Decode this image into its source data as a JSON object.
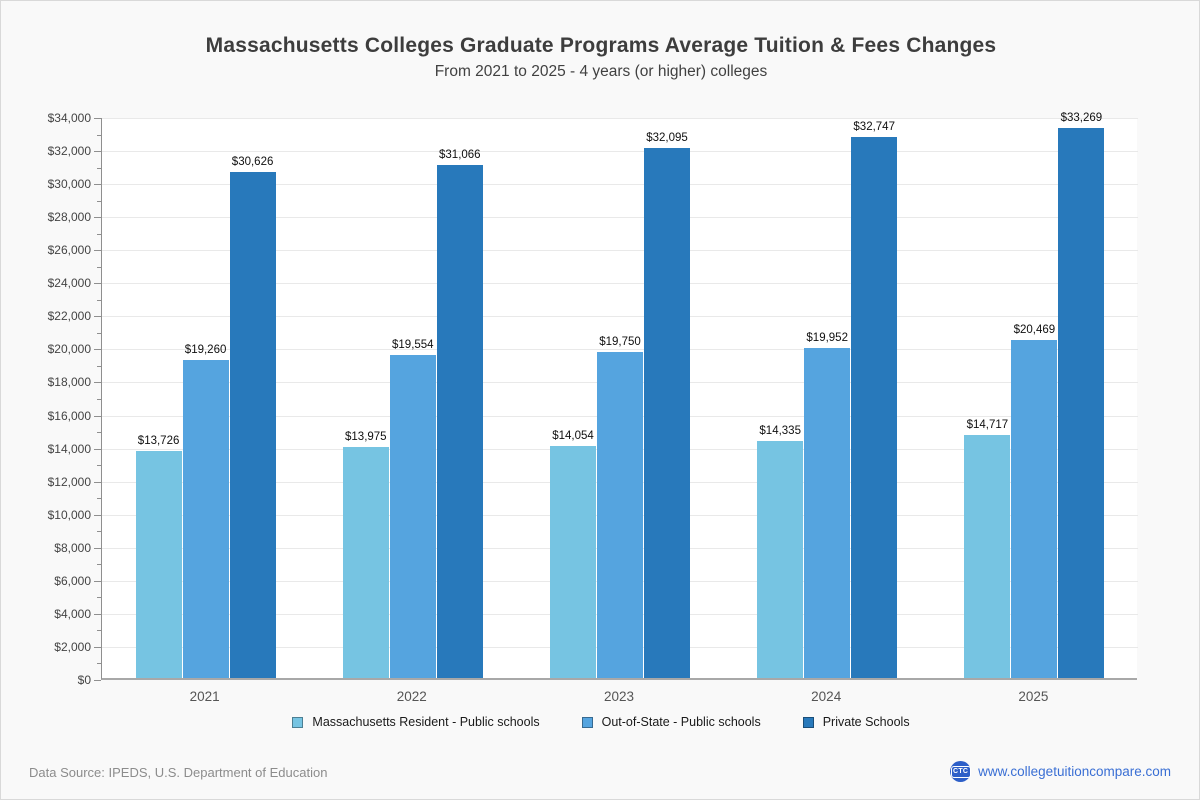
{
  "title": "Massachusetts Colleges Graduate Programs Average Tuition & Fees Changes",
  "subtitle": "From 2021 to 2025 - 4 years (or higher) colleges",
  "chart_data": {
    "type": "bar",
    "categories": [
      "2021",
      "2022",
      "2023",
      "2024",
      "2025"
    ],
    "series": [
      {
        "name": "Massachusetts Resident - Public schools",
        "color": "#76c4e2",
        "values": [
          13726,
          13975,
          14054,
          14335,
          14717
        ]
      },
      {
        "name": "Out-of-State - Public schools",
        "color": "#55a4df",
        "values": [
          19260,
          19554,
          19750,
          19952,
          20469
        ]
      },
      {
        "name": "Private Schools",
        "color": "#2879bb",
        "values": [
          30626,
          31066,
          32095,
          32747,
          33269
        ]
      }
    ],
    "ylim": [
      0,
      34000
    ],
    "y_tick_step": 2000,
    "y_minor_tick_step": 1000,
    "value_prefix": "$",
    "grid": true,
    "legend_position": "bottom",
    "value_labels": [
      "$13,726",
      "$19,260",
      "$30,626",
      "$13,975",
      "$19,554",
      "$31,066",
      "$14,054",
      "$19,750",
      "$32,095",
      "$14,335",
      "$19,952",
      "$32,747",
      "$14,717",
      "$20,469",
      "$33,269"
    ]
  },
  "footer": {
    "data_source": "Data Source: IPEDS, U.S. Department of Education",
    "website": "www.collegetuitioncompare.com",
    "logo_text": "CTC"
  },
  "colors": {
    "page_background": "#f9f9f9",
    "plot_background": "#ffffff",
    "gridline": "#e9e9e9",
    "axis": "#8f8f8f",
    "title_text": "#3d3d3d",
    "link_blue": "#3a6fd4",
    "logo_blue": "#2d5fc8"
  }
}
